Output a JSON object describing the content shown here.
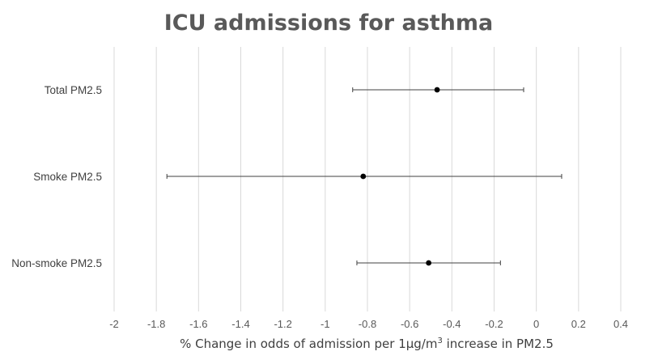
{
  "chart_data": {
    "type": "scatter",
    "title": "ICU admissions for asthma",
    "xlabel_parts": [
      "% Change in odds of admission per 1µg/m",
      "3",
      " increase in PM2.5"
    ],
    "ylabel": "",
    "xlim": [
      -2,
      0.4
    ],
    "xticks": [
      -2,
      -1.8,
      -1.6,
      -1.4,
      -1.2,
      -1,
      -0.8,
      -0.6,
      -0.4,
      -0.2,
      0,
      0.2,
      0.4
    ],
    "xtick_labels": [
      "-2",
      "-1.8",
      "-1.6",
      "-1.4",
      "-1.2",
      "-1",
      "-0.8",
      "-0.6",
      "-0.4",
      "-0.2",
      "0",
      "0.2",
      "0.4"
    ],
    "grid": "vertical",
    "legend": "none",
    "categories": [
      "Total PM2.5",
      "Smoke PM2.5",
      "Non-smoke PM2.5"
    ],
    "points": [
      {
        "category": "Total PM2.5",
        "estimate": -0.47,
        "lower": -0.87,
        "upper": -0.06
      },
      {
        "category": "Smoke PM2.5",
        "estimate": -0.82,
        "lower": -1.75,
        "upper": 0.12
      },
      {
        "category": "Non-smoke PM2.5",
        "estimate": -0.51,
        "lower": -0.85,
        "upper": -0.17
      }
    ],
    "colors": {
      "point": "#000000",
      "error_bar": "#404040",
      "grid": "#d9d9d9",
      "text": "#595959"
    }
  }
}
